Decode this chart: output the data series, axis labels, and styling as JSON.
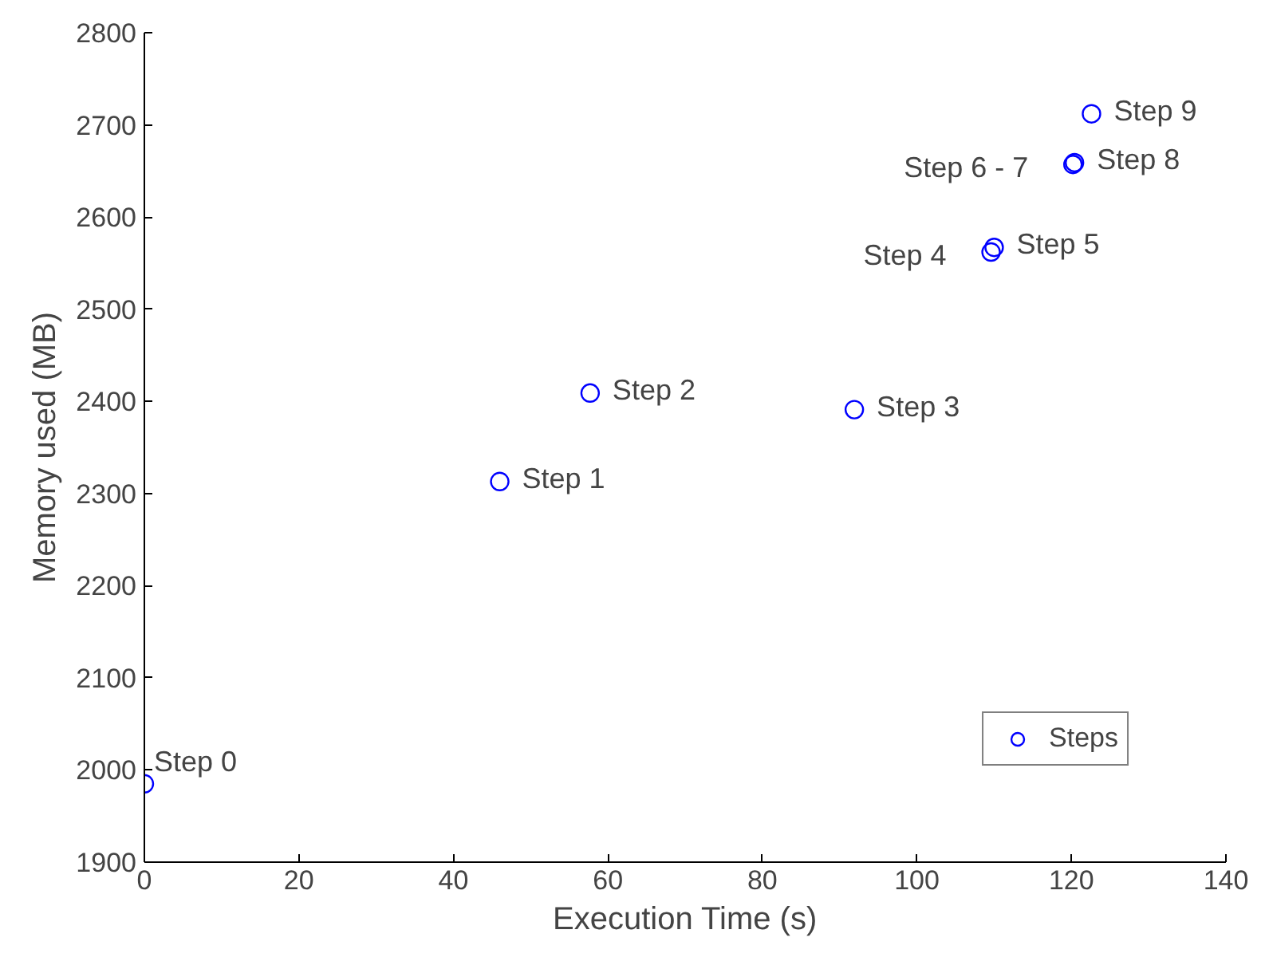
{
  "chart_data": {
    "type": "scatter",
    "xlabel": "Execution Time (s)",
    "ylabel": "Memory used (MB)",
    "x": [
      0,
      46,
      57.7,
      91.9,
      109.6,
      110,
      120.2,
      120.4,
      122.6
    ],
    "series": [
      {
        "name": "Steps",
        "color": "#0000ff",
        "values": [
          1985,
          2313,
          2409,
          2391,
          2562,
          2567,
          2657,
          2659,
          2712
        ]
      }
    ],
    "xlim": [
      0,
      140
    ],
    "ylim": [
      1900,
      2800
    ],
    "xticks": [
      0,
      20,
      40,
      60,
      80,
      100,
      120,
      140
    ],
    "yticks": [
      1900,
      2000,
      2100,
      2200,
      2300,
      2400,
      2500,
      2600,
      2700,
      2800
    ],
    "marker": "circle",
    "grid": false,
    "legend": "bottom right",
    "annotations": [
      {
        "text": "Step 0",
        "x": 0,
        "y": 1985
      },
      {
        "text": "Step 1",
        "x": 46,
        "y": 2313
      },
      {
        "text": "Step 2",
        "x": 57.7,
        "y": 2409
      },
      {
        "text": "Step 3",
        "x": 91.9,
        "y": 2391
      },
      {
        "text": "Step 4",
        "x": 109.6,
        "y": 2562
      },
      {
        "text": "Step 5",
        "x": 110,
        "y": 2567
      },
      {
        "text": "Step 6 - 7",
        "x": 120.2,
        "y": 2657
      },
      {
        "text": "Step 8",
        "x": 120.4,
        "y": 2659
      },
      {
        "text": "Step 9",
        "x": 122.6,
        "y": 2712
      }
    ]
  }
}
